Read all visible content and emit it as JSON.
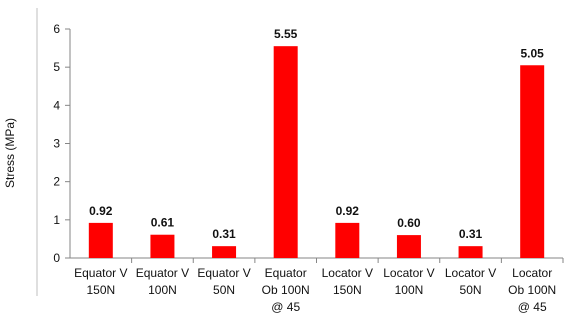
{
  "chart_data": {
    "type": "bar",
    "ylabel": "Stress (MPa)",
    "xlabel": "",
    "ylim": [
      0,
      6
    ],
    "yticks": [
      "0",
      "1",
      "2",
      "3",
      "4",
      "5",
      "6"
    ],
    "grid": false,
    "bar_color": "#ff0000",
    "categories": [
      [
        "Equator V",
        "150N"
      ],
      [
        "Equator V",
        "100N"
      ],
      [
        "Equator V",
        "50N"
      ],
      [
        "Equator",
        "Ob 100N",
        "@ 45"
      ],
      [
        "Locator V",
        "150N"
      ],
      [
        "Locator V",
        "100N"
      ],
      [
        "Locator V",
        "50N"
      ],
      [
        "Locator",
        "Ob 100N",
        "@ 45"
      ]
    ],
    "values": [
      0.92,
      0.61,
      0.31,
      5.55,
      0.92,
      0.6,
      0.31,
      5.05
    ],
    "data_labels": [
      "0.92",
      "0.61",
      "0.31",
      "5.55",
      "0.92",
      "0.60",
      "0.31",
      "5.05"
    ]
  }
}
